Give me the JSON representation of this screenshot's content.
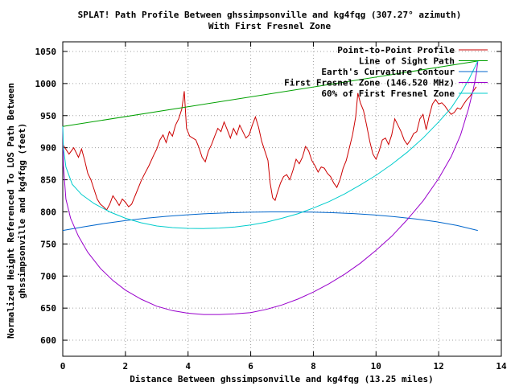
{
  "chart_data": {
    "type": "line",
    "title": "SPLAT! Path Profile Between ghssimpsonville and kg4fqg (307.27° azimuth)",
    "subtitle": "With First Fresnel Zone",
    "xlabel": "Distance Between ghssimpsonville and kg4fqg (13.25 miles)",
    "ylabel_line1": "Normalized Height Referenced To LOS Path Between",
    "ylabel_line2": "ghssimpsonville and kg4fqg (feet)",
    "xlim": [
      0,
      14
    ],
    "ylim": [
      575,
      1065
    ],
    "x_ticks": [
      "0",
      "2",
      "4",
      "6",
      "8",
      "10",
      "12",
      "14"
    ],
    "y_ticks": [
      "600",
      "650",
      "700",
      "750",
      "800",
      "850",
      "900",
      "950",
      "1000",
      "1050"
    ],
    "grid": true,
    "legend_position": "top-right",
    "series": [
      {
        "name": "Point-to-Point Profile",
        "color": "#cc0000",
        "points": [
          [
            0,
            905
          ],
          [
            0.2,
            890
          ],
          [
            0.35,
            900
          ],
          [
            0.5,
            885
          ],
          [
            0.6,
            898
          ],
          [
            0.7,
            880
          ],
          [
            0.8,
            860
          ],
          [
            0.9,
            850
          ],
          [
            1.0,
            835
          ],
          [
            1.1,
            820
          ],
          [
            1.2,
            812
          ],
          [
            1.3,
            808
          ],
          [
            1.4,
            803
          ],
          [
            1.5,
            812
          ],
          [
            1.6,
            825
          ],
          [
            1.7,
            818
          ],
          [
            1.8,
            810
          ],
          [
            1.9,
            820
          ],
          [
            2.0,
            815
          ],
          [
            2.1,
            808
          ],
          [
            2.2,
            812
          ],
          [
            2.35,
            830
          ],
          [
            2.5,
            848
          ],
          [
            2.6,
            858
          ],
          [
            2.75,
            872
          ],
          [
            2.9,
            888
          ],
          [
            3.0,
            898
          ],
          [
            3.1,
            912
          ],
          [
            3.2,
            920
          ],
          [
            3.3,
            908
          ],
          [
            3.4,
            925
          ],
          [
            3.5,
            918
          ],
          [
            3.6,
            935
          ],
          [
            3.7,
            945
          ],
          [
            3.8,
            960
          ],
          [
            3.88,
            988
          ],
          [
            3.95,
            930
          ],
          [
            4.05,
            918
          ],
          [
            4.15,
            915
          ],
          [
            4.25,
            912
          ],
          [
            4.35,
            900
          ],
          [
            4.45,
            885
          ],
          [
            4.55,
            878
          ],
          [
            4.65,
            895
          ],
          [
            4.75,
            905
          ],
          [
            4.85,
            918
          ],
          [
            4.95,
            930
          ],
          [
            5.05,
            925
          ],
          [
            5.15,
            940
          ],
          [
            5.25,
            928
          ],
          [
            5.35,
            915
          ],
          [
            5.45,
            930
          ],
          [
            5.55,
            920
          ],
          [
            5.65,
            935
          ],
          [
            5.75,
            925
          ],
          [
            5.85,
            915
          ],
          [
            5.95,
            920
          ],
          [
            6.05,
            935
          ],
          [
            6.15,
            948
          ],
          [
            6.25,
            932
          ],
          [
            6.35,
            910
          ],
          [
            6.45,
            895
          ],
          [
            6.55,
            880
          ],
          [
            6.62,
            845
          ],
          [
            6.7,
            822
          ],
          [
            6.78,
            818
          ],
          [
            6.85,
            830
          ],
          [
            6.95,
            845
          ],
          [
            7.05,
            855
          ],
          [
            7.15,
            858
          ],
          [
            7.25,
            850
          ],
          [
            7.35,
            865
          ],
          [
            7.45,
            882
          ],
          [
            7.55,
            875
          ],
          [
            7.65,
            885
          ],
          [
            7.75,
            902
          ],
          [
            7.85,
            895
          ],
          [
            7.95,
            880
          ],
          [
            8.05,
            872
          ],
          [
            8.15,
            862
          ],
          [
            8.25,
            870
          ],
          [
            8.35,
            868
          ],
          [
            8.45,
            860
          ],
          [
            8.55,
            855
          ],
          [
            8.65,
            845
          ],
          [
            8.75,
            838
          ],
          [
            8.85,
            850
          ],
          [
            8.95,
            868
          ],
          [
            9.05,
            880
          ],
          [
            9.15,
            900
          ],
          [
            9.25,
            920
          ],
          [
            9.35,
            948
          ],
          [
            9.42,
            985
          ],
          [
            9.5,
            970
          ],
          [
            9.6,
            958
          ],
          [
            9.7,
            935
          ],
          [
            9.8,
            910
          ],
          [
            9.9,
            890
          ],
          [
            10.0,
            882
          ],
          [
            10.1,
            895
          ],
          [
            10.2,
            912
          ],
          [
            10.3,
            915
          ],
          [
            10.4,
            905
          ],
          [
            10.5,
            920
          ],
          [
            10.6,
            945
          ],
          [
            10.7,
            935
          ],
          [
            10.8,
            925
          ],
          [
            10.9,
            912
          ],
          [
            11.0,
            905
          ],
          [
            11.1,
            912
          ],
          [
            11.2,
            922
          ],
          [
            11.3,
            925
          ],
          [
            11.4,
            945
          ],
          [
            11.5,
            952
          ],
          [
            11.6,
            928
          ],
          [
            11.7,
            950
          ],
          [
            11.8,
            968
          ],
          [
            11.9,
            975
          ],
          [
            12.0,
            968
          ],
          [
            12.1,
            970
          ],
          [
            12.2,
            965
          ],
          [
            12.3,
            958
          ],
          [
            12.4,
            952
          ],
          [
            12.5,
            955
          ],
          [
            12.6,
            962
          ],
          [
            12.7,
            960
          ],
          [
            12.8,
            968
          ],
          [
            12.9,
            975
          ],
          [
            13.0,
            980
          ],
          [
            13.1,
            988
          ],
          [
            13.2,
            995
          ]
        ]
      },
      {
        "name": "Line of Sight Path",
        "color": "#00a000",
        "points": [
          [
            0,
            933
          ],
          [
            13.25,
            1035
          ]
        ]
      },
      {
        "name": "Earth's Curvature Contour",
        "color": "#0066cc",
        "points": [
          [
            0,
            771
          ],
          [
            0.66,
            776.7
          ],
          [
            1.33,
            781.9
          ],
          [
            1.99,
            786.3
          ],
          [
            2.65,
            790
          ],
          [
            3.31,
            793
          ],
          [
            3.98,
            795.4
          ],
          [
            4.64,
            797.3
          ],
          [
            5.3,
            798.6
          ],
          [
            5.96,
            799.5
          ],
          [
            6.63,
            800
          ],
          [
            7.29,
            800
          ],
          [
            7.95,
            799.6
          ],
          [
            8.61,
            798.7
          ],
          [
            9.28,
            797.3
          ],
          [
            9.94,
            795.2
          ],
          [
            10.6,
            792.4
          ],
          [
            11.26,
            788.9
          ],
          [
            11.93,
            784.5
          ],
          [
            12.59,
            778.8
          ],
          [
            13.25,
            771
          ]
        ]
      },
      {
        "name": "First Fresnel Zone (146.520 MHz)",
        "color": "#9900cc",
        "points": [
          [
            0,
            933
          ],
          [
            0.02,
            872
          ],
          [
            0.1,
            820
          ],
          [
            0.25,
            790
          ],
          [
            0.5,
            762
          ],
          [
            0.8,
            737
          ],
          [
            1.2,
            712
          ],
          [
            1.6,
            693
          ],
          [
            2.0,
            678
          ],
          [
            2.5,
            664
          ],
          [
            3.0,
            653
          ],
          [
            3.5,
            646
          ],
          [
            4.0,
            642
          ],
          [
            4.5,
            640
          ],
          [
            5.0,
            640
          ],
          [
            5.5,
            641
          ],
          [
            6.0,
            643
          ],
          [
            6.5,
            648
          ],
          [
            7.0,
            655
          ],
          [
            7.5,
            664
          ],
          [
            8.0,
            675
          ],
          [
            8.5,
            688
          ],
          [
            9.0,
            703
          ],
          [
            9.5,
            720
          ],
          [
            10.0,
            740
          ],
          [
            10.5,
            762
          ],
          [
            11.0,
            788
          ],
          [
            11.5,
            817
          ],
          [
            12.0,
            852
          ],
          [
            12.4,
            886
          ],
          [
            12.7,
            920
          ],
          [
            12.95,
            960
          ],
          [
            13.1,
            990
          ],
          [
            13.2,
            1015
          ],
          [
            13.25,
            1035
          ]
        ]
      },
      {
        "name": "60% of First Fresnel Zone",
        "color": "#00cccc",
        "points": [
          [
            0,
            933
          ],
          [
            0.02,
            900
          ],
          [
            0.1,
            870
          ],
          [
            0.3,
            843
          ],
          [
            0.6,
            827
          ],
          [
            1.0,
            813
          ],
          [
            1.5,
            800
          ],
          [
            2.0,
            790
          ],
          [
            2.5,
            783
          ],
          [
            3.0,
            778
          ],
          [
            3.5,
            775.5
          ],
          [
            4.0,
            774.2
          ],
          [
            4.5,
            774
          ],
          [
            5.0,
            774.8
          ],
          [
            5.5,
            776.5
          ],
          [
            6.0,
            779.5
          ],
          [
            6.5,
            784
          ],
          [
            7.0,
            790
          ],
          [
            7.5,
            797
          ],
          [
            8.0,
            806
          ],
          [
            8.5,
            816
          ],
          [
            9.0,
            828
          ],
          [
            9.5,
            842
          ],
          [
            10.0,
            857
          ],
          [
            10.5,
            874
          ],
          [
            11.0,
            893
          ],
          [
            11.5,
            915
          ],
          [
            12.0,
            940
          ],
          [
            12.4,
            962
          ],
          [
            12.7,
            984
          ],
          [
            12.95,
            1005
          ],
          [
            13.1,
            1020
          ],
          [
            13.25,
            1035
          ]
        ]
      }
    ]
  }
}
